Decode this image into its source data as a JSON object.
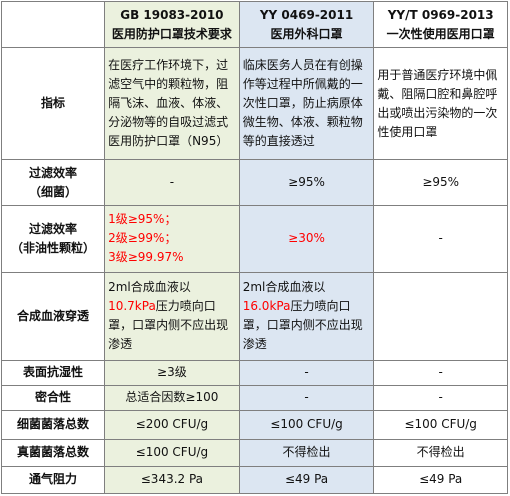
{
  "header": {
    "corner": "",
    "gb": {
      "code": "GB 19083-2010",
      "name": "医用防护口罩技术要求"
    },
    "yy": {
      "code": "YY 0469-2011",
      "name": "医用外科口罩"
    },
    "yyt": {
      "code": "YY/T 0969-2013",
      "name": "一次性使用医用口罩"
    }
  },
  "rows": {
    "indicator": {
      "label": "指标",
      "gb": "在医疗工作环境下，过滤空气中的颗粒物，阻隔飞沫、血液、体液、分泌物等的自吸过滤式医用防护口罩（N95）",
      "yy": "临床医务人员在有创操作等过程中所佩戴的一次性口罩，防止病原体微生物、体液、颗粒物等的直接透过",
      "yyt": "用于普通医疗环境中佩戴、阻隔口腔和鼻腔呼出或喷出污染物的一次性使用口罩"
    },
    "bacterial": {
      "label_line1": "过滤效率",
      "label_line2": "（细菌）",
      "gb": "-",
      "yy": "≥95%",
      "yyt": "≥95%"
    },
    "particle": {
      "label_line1": "过滤效率",
      "label_line2": "（非油性颗粒）",
      "gb_line1": "1级≥95%；",
      "gb_line2": "2级≥99%；",
      "gb_line3": "3级≥99.97%",
      "yy": "≥30%",
      "yyt": "-"
    },
    "blood": {
      "label": "合成血液穿透",
      "gb_pre": "2ml合成血液以",
      "gb_value": "10.7kPa",
      "gb_post": "压力喷向口罩，口罩内侧不应出现渗透",
      "yy_pre": "2ml合成血液以",
      "yy_value": "16.0kPa",
      "yy_post": "压力喷向口罩，口罩内侧不应出现渗透",
      "yyt": ""
    },
    "wetting": {
      "label": "表面抗湿性",
      "gb": "≥3级",
      "yy": "-",
      "yyt": "-"
    },
    "fit": {
      "label": "密合性",
      "gb": "总适合因数≥100",
      "yy": "-",
      "yyt": "-"
    },
    "bacteria_count": {
      "label": "细菌菌落总数",
      "gb": "≤200 CFU/g",
      "yy": "≤100 CFU/g",
      "yyt": "≤100 CFU/g"
    },
    "fungi_count": {
      "label": "真菌菌落总数",
      "gb": "≤100 CFU/g",
      "yy": "不得检出",
      "yyt": "不得检出"
    },
    "resistance": {
      "label": "通气阻力",
      "gb": "≤343.2 Pa",
      "yy": "≤49 Pa",
      "yyt": "≤49 Pa"
    }
  },
  "colors": {
    "gb_bg": "#ebf1de",
    "yy_bg": "#dce6f2",
    "highlight": "#ff0000",
    "border": "#7f7f7f"
  }
}
